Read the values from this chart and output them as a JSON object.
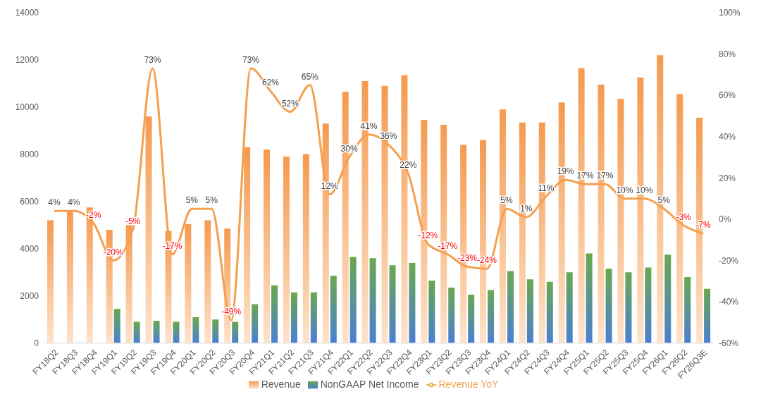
{
  "chart_data": {
    "type": "bar",
    "categories": [
      "FY18Q2",
      "FY18Q3",
      "FY18Q4",
      "FY19Q1",
      "FY19Q2",
      "FY19Q3",
      "FY19Q4",
      "FY20Q1",
      "FY20Q2",
      "FY20Q3",
      "FY20Q4",
      "FY21Q1",
      "FY21Q2",
      "FY21Q3",
      "FY21Q4",
      "FY22Q1",
      "FY22Q2",
      "FY22Q3",
      "FY22Q4",
      "FY23Q1",
      "FY23Q2",
      "FY23Q3",
      "FY23Q4",
      "FY24Q1",
      "FY24Q2",
      "FY24Q3",
      "FY24Q4",
      "FY25Q1",
      "FY25Q2",
      "FY25Q3",
      "FY25Q4",
      "FY26Q1",
      "FY26Q2",
      "FY26Q3E"
    ],
    "series": [
      {
        "name": "Revenue",
        "color": "#f59a4f",
        "values": [
          5200,
          5600,
          5750,
          4800,
          5000,
          9600,
          4750,
          5050,
          5200,
          4850,
          8300,
          8200,
          7900,
          8000,
          9300,
          10650,
          11100,
          10900,
          11350,
          9450,
          9250,
          8400,
          8600,
          9900,
          9350,
          9350,
          10200,
          11650,
          10950,
          10350,
          11250,
          12200,
          10550,
          9550
        ]
      },
      {
        "name": "NonGAAP Net Income",
        "color": "#6aa84f",
        "values": [
          null,
          null,
          null,
          1450,
          900,
          950,
          900,
          1100,
          1000,
          900,
          1650,
          2450,
          2150,
          2150,
          2850,
          3650,
          3600,
          3300,
          3400,
          2650,
          2350,
          2050,
          2250,
          3050,
          2700,
          2600,
          3000,
          3800,
          3150,
          3000,
          3200,
          3750,
          2800,
          2300
        ]
      },
      {
        "name": "Revenue YoY",
        "type": "line",
        "axis": "y2",
        "color": "#f4a04e",
        "values": [
          4,
          4,
          -2,
          -20,
          -5,
          73,
          -17,
          5,
          5,
          -49,
          73,
          62,
          52,
          65,
          12,
          30,
          41,
          36,
          22,
          -12,
          -17,
          -23,
          -24,
          5,
          1,
          11,
          19,
          17,
          17,
          10,
          10,
          5,
          -3,
          -7
        ],
        "value_labels": [
          "4%",
          "4%",
          "-2%",
          "-20%",
          "-5%",
          "73%",
          "-17%",
          "5%",
          "5%",
          "-49%",
          "73%",
          "62%",
          "52%",
          "65%",
          "12%",
          "30%",
          "41%",
          "36%",
          "22%",
          "-12%",
          "-17%",
          "-23%",
          "-24%",
          "5%",
          "1%",
          "11%",
          "19%",
          "17%",
          "17%",
          "10%",
          "10%",
          "5%",
          "-3%",
          "-7%"
        ]
      }
    ],
    "ylim": [
      0,
      14000
    ],
    "yticks": [
      0,
      2000,
      4000,
      6000,
      8000,
      10000,
      12000,
      14000
    ],
    "y2lim": [
      -60,
      100
    ],
    "y2ticks": [
      {
        "value": -60,
        "label": "-60%"
      },
      {
        "value": -40,
        "label": "-40%"
      },
      {
        "value": -20,
        "label": "-20%"
      },
      {
        "value": 0,
        "label": "0%"
      },
      {
        "value": 20,
        "label": "20%"
      },
      {
        "value": 40,
        "label": "40%"
      },
      {
        "value": 60,
        "label": "60%"
      },
      {
        "value": 80,
        "label": "80%"
      },
      {
        "value": 100,
        "label": "100%"
      }
    ],
    "legend": "bottom",
    "grid": false,
    "marker": "none"
  }
}
